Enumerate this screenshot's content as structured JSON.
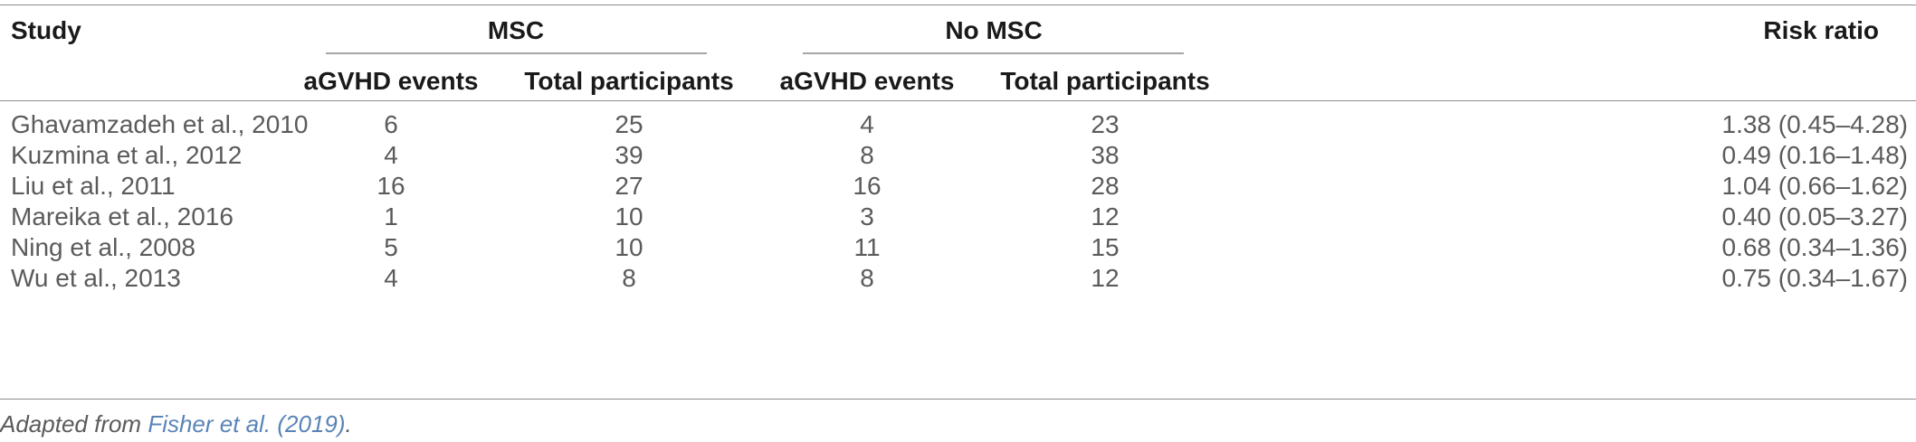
{
  "table": {
    "headers": {
      "study": "Study",
      "msc_group": "MSC",
      "no_msc_group": "No MSC",
      "risk_ratio": "Risk ratio",
      "sub": [
        "aGVHD events",
        "Total participants",
        "aGVHD events",
        "Total participants"
      ]
    },
    "rows": [
      [
        "Ghavamzadeh et al., 2010",
        "6",
        "25",
        "4",
        "23",
        "1.38 (0.45–4.28)"
      ],
      [
        "Kuzmina et al., 2012",
        "4",
        "39",
        "8",
        "38",
        "0.49 (0.16–1.48)"
      ],
      [
        "Liu et al., 2011",
        "16",
        "27",
        "16",
        "28",
        "1.04 (0.66–1.62)"
      ],
      [
        "Mareika et al., 2016",
        "1",
        "10",
        "3",
        "12",
        "0.40 (0.05–3.27)"
      ],
      [
        "Ning et al., 2008",
        "5",
        "10",
        "11",
        "15",
        "0.68 (0.34–1.36)"
      ],
      [
        "Wu et al., 2013",
        "4",
        "8",
        "8",
        "12",
        "0.75 (0.34–1.67)"
      ]
    ]
  },
  "footnote": {
    "prefix": "Adapted from ",
    "link": "Fisher et al. (2019)",
    "suffix": "."
  }
}
